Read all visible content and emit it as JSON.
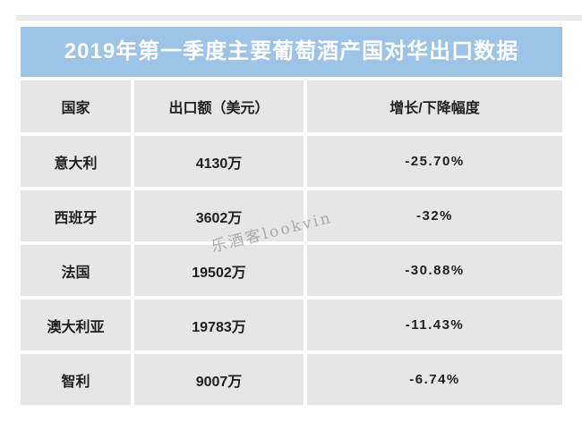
{
  "title_bar": {
    "text": "2019年第一季度主要葡萄酒产国对华出口数据",
    "background": "#9dc3e6",
    "text_color": "#ffffff"
  },
  "table": {
    "cell_background": "#e7e6e6",
    "text_color": "#1f1f1f",
    "headers": [
      "国家",
      "出口额（美元）",
      "增长/下降幅度"
    ],
    "rows": [
      {
        "country": "意大利",
        "amount": "4130万",
        "change": "-25.70%"
      },
      {
        "country": "西班牙",
        "amount": "3602万",
        "change": "-32%"
      },
      {
        "country": "法国",
        "amount": "19502万",
        "change": "-30.88%"
      },
      {
        "country": "澳大利亚",
        "amount": "19783万",
        "change": "-11.43%"
      },
      {
        "country": "智利",
        "amount": "9007万",
        "change": "-6.74%"
      }
    ]
  },
  "watermark": {
    "text": "乐酒客lookvin",
    "color": "#969696"
  },
  "chart_data": {
    "type": "table",
    "title": "2019年第一季度主要葡萄酒产国对华出口数据",
    "columns": [
      "国家",
      "出口额（美元）",
      "增长/下降幅度"
    ],
    "categories": [
      "意大利",
      "西班牙",
      "法国",
      "澳大利亚",
      "智利"
    ],
    "series": [
      {
        "name": "出口额（万美元）",
        "values": [
          4130,
          3602,
          19502,
          19783,
          9007
        ]
      },
      {
        "name": "增长/下降幅度（%）",
        "values": [
          -25.7,
          -32,
          -30.88,
          -11.43,
          -6.74
        ]
      }
    ]
  }
}
